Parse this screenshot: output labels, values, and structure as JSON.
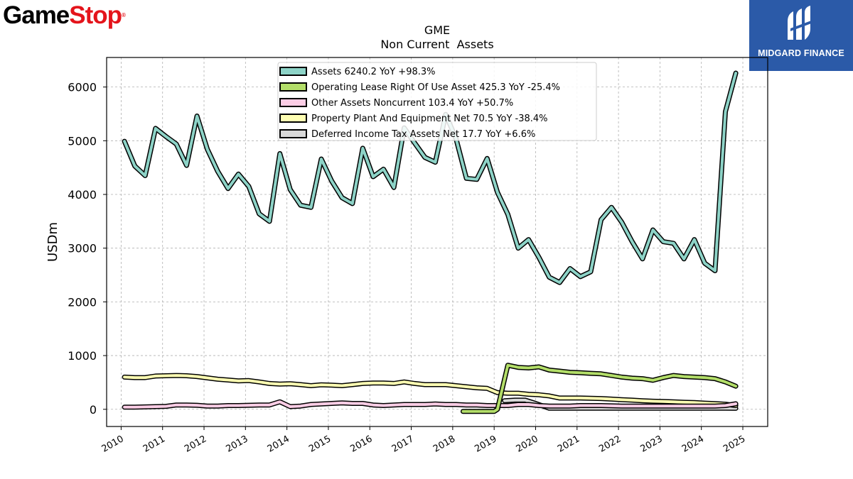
{
  "branding": {
    "left_logo": {
      "part1": "Game",
      "part2": "Stop",
      "mark": "®"
    },
    "right_logo": {
      "icon": "midgard-m-logo-icon",
      "text": "MIDGARD FINANCE",
      "background": "#2b5aa8"
    }
  },
  "chart_data": {
    "type": "line",
    "title": "GME",
    "subtitle": "Non Current  Assets",
    "xlabel": "",
    "ylabel": "USDm",
    "xlim": [
      2009.65,
      2025.6
    ],
    "ylim": [
      -320,
      6550
    ],
    "x_ticks": [
      2010,
      2011,
      2012,
      2013,
      2014,
      2015,
      2016,
      2017,
      2018,
      2019,
      2020,
      2021,
      2022,
      2023,
      2024,
      2025
    ],
    "y_ticks": [
      0,
      1000,
      2000,
      3000,
      4000,
      5000,
      6000
    ],
    "grid": true,
    "legend_position": "top-center",
    "series": [
      {
        "name": "Assets",
        "legend_label": "Assets  6240.2 YoY +98.3%",
        "color": "#8dd3c7",
        "points": [
          [
            2010.08,
            4990
          ],
          [
            2010.33,
            4530
          ],
          [
            2010.58,
            4350
          ],
          [
            2010.83,
            5230
          ],
          [
            2011.08,
            5080
          ],
          [
            2011.33,
            4940
          ],
          [
            2011.58,
            4540
          ],
          [
            2011.83,
            5460
          ],
          [
            2012.08,
            4840
          ],
          [
            2012.33,
            4430
          ],
          [
            2012.58,
            4110
          ],
          [
            2012.83,
            4380
          ],
          [
            2013.08,
            4150
          ],
          [
            2013.33,
            3640
          ],
          [
            2013.58,
            3500
          ],
          [
            2013.83,
            4760
          ],
          [
            2014.08,
            4090
          ],
          [
            2014.33,
            3800
          ],
          [
            2014.58,
            3760
          ],
          [
            2014.83,
            4660
          ],
          [
            2015.08,
            4250
          ],
          [
            2015.33,
            3940
          ],
          [
            2015.58,
            3830
          ],
          [
            2015.83,
            4860
          ],
          [
            2016.08,
            4330
          ],
          [
            2016.33,
            4470
          ],
          [
            2016.58,
            4130
          ],
          [
            2016.83,
            5240
          ],
          [
            2017.08,
            4960
          ],
          [
            2017.33,
            4690
          ],
          [
            2017.58,
            4600
          ],
          [
            2017.83,
            5490
          ],
          [
            2018.08,
            5040
          ],
          [
            2018.33,
            4300
          ],
          [
            2018.58,
            4280
          ],
          [
            2018.83,
            4670
          ],
          [
            2019.08,
            4040
          ],
          [
            2019.33,
            3630
          ],
          [
            2019.58,
            3000
          ],
          [
            2019.83,
            3160
          ],
          [
            2020.08,
            2830
          ],
          [
            2020.33,
            2460
          ],
          [
            2020.58,
            2360
          ],
          [
            2020.83,
            2620
          ],
          [
            2021.08,
            2470
          ],
          [
            2021.33,
            2560
          ],
          [
            2021.58,
            3530
          ],
          [
            2021.83,
            3760
          ],
          [
            2022.08,
            3480
          ],
          [
            2022.33,
            3120
          ],
          [
            2022.58,
            2800
          ],
          [
            2022.83,
            3340
          ],
          [
            2023.08,
            3120
          ],
          [
            2023.33,
            3090
          ],
          [
            2023.58,
            2800
          ],
          [
            2023.83,
            3160
          ],
          [
            2024.08,
            2720
          ],
          [
            2024.33,
            2580
          ],
          [
            2024.58,
            5540
          ],
          [
            2024.83,
            6260
          ]
        ]
      },
      {
        "name": "Operating Lease Right Of Use Asset",
        "legend_label": "Operating Lease Right Of Use Asset  425.3 YoY -25.4%",
        "color": "#b3de69",
        "points": [
          [
            2018.25,
            -40
          ],
          [
            2018.5,
            -40
          ],
          [
            2018.75,
            -40
          ],
          [
            2019.0,
            -40
          ],
          [
            2019.08,
            0
          ],
          [
            2019.33,
            820
          ],
          [
            2019.58,
            780
          ],
          [
            2019.83,
            770
          ],
          [
            2020.08,
            790
          ],
          [
            2020.33,
            730
          ],
          [
            2020.58,
            710
          ],
          [
            2020.83,
            690
          ],
          [
            2021.08,
            680
          ],
          [
            2021.33,
            670
          ],
          [
            2021.58,
            660
          ],
          [
            2021.83,
            630
          ],
          [
            2022.08,
            600
          ],
          [
            2022.33,
            580
          ],
          [
            2022.58,
            570
          ],
          [
            2022.83,
            540
          ],
          [
            2023.08,
            590
          ],
          [
            2023.33,
            630
          ],
          [
            2023.58,
            610
          ],
          [
            2023.83,
            600
          ],
          [
            2024.08,
            590
          ],
          [
            2024.33,
            570
          ],
          [
            2024.58,
            510
          ],
          [
            2024.83,
            430
          ]
        ]
      },
      {
        "name": "Other Assets Noncurrent",
        "legend_label": "Other Assets Noncurrent  103.4 YoY +50.7%",
        "color": "#fccde5",
        "points": [
          [
            2010.08,
            40
          ],
          [
            2010.33,
            40
          ],
          [
            2010.58,
            45
          ],
          [
            2010.83,
            50
          ],
          [
            2011.08,
            55
          ],
          [
            2011.33,
            80
          ],
          [
            2011.58,
            80
          ],
          [
            2011.83,
            75
          ],
          [
            2012.08,
            60
          ],
          [
            2012.33,
            60
          ],
          [
            2012.58,
            70
          ],
          [
            2012.83,
            70
          ],
          [
            2013.08,
            75
          ],
          [
            2013.33,
            80
          ],
          [
            2013.58,
            80
          ],
          [
            2013.83,
            140
          ],
          [
            2014.08,
            50
          ],
          [
            2014.33,
            60
          ],
          [
            2014.58,
            90
          ],
          [
            2014.83,
            100
          ],
          [
            2015.08,
            110
          ],
          [
            2015.33,
            120
          ],
          [
            2015.58,
            110
          ],
          [
            2015.83,
            110
          ],
          [
            2016.08,
            80
          ],
          [
            2016.33,
            70
          ],
          [
            2016.58,
            80
          ],
          [
            2016.83,
            90
          ],
          [
            2017.08,
            90
          ],
          [
            2017.33,
            90
          ],
          [
            2017.58,
            100
          ],
          [
            2017.83,
            90
          ],
          [
            2018.08,
            90
          ],
          [
            2018.33,
            80
          ],
          [
            2018.58,
            80
          ],
          [
            2018.83,
            70
          ],
          [
            2019.08,
            70
          ],
          [
            2019.33,
            70
          ],
          [
            2019.58,
            90
          ],
          [
            2019.83,
            90
          ],
          [
            2020.08,
            70
          ],
          [
            2020.33,
            60
          ],
          [
            2020.58,
            60
          ],
          [
            2020.83,
            60
          ],
          [
            2021.08,
            70
          ],
          [
            2021.33,
            70
          ],
          [
            2021.58,
            70
          ],
          [
            2021.83,
            65
          ],
          [
            2022.08,
            60
          ],
          [
            2022.33,
            60
          ],
          [
            2022.58,
            60
          ],
          [
            2022.83,
            60
          ],
          [
            2023.08,
            60
          ],
          [
            2023.33,
            60
          ],
          [
            2023.58,
            60
          ],
          [
            2023.83,
            60
          ],
          [
            2024.08,
            60
          ],
          [
            2024.33,
            60
          ],
          [
            2024.58,
            70
          ],
          [
            2024.83,
            103
          ]
        ]
      },
      {
        "name": "Property Plant And Equipment Net",
        "legend_label": "Property Plant And Equipment Net  70.5 YoY -38.4%",
        "color": "#ffffb3",
        "points": [
          [
            2010.08,
            600
          ],
          [
            2010.33,
            590
          ],
          [
            2010.58,
            590
          ],
          [
            2010.83,
            620
          ],
          [
            2011.08,
            625
          ],
          [
            2011.33,
            630
          ],
          [
            2011.58,
            625
          ],
          [
            2011.83,
            610
          ],
          [
            2012.08,
            585
          ],
          [
            2012.33,
            560
          ],
          [
            2012.58,
            545
          ],
          [
            2012.83,
            530
          ],
          [
            2013.08,
            535
          ],
          [
            2013.33,
            510
          ],
          [
            2013.58,
            480
          ],
          [
            2013.83,
            470
          ],
          [
            2014.08,
            475
          ],
          [
            2014.33,
            460
          ],
          [
            2014.58,
            440
          ],
          [
            2014.83,
            455
          ],
          [
            2015.08,
            450
          ],
          [
            2015.33,
            440
          ],
          [
            2015.58,
            460
          ],
          [
            2015.83,
            480
          ],
          [
            2016.08,
            490
          ],
          [
            2016.33,
            490
          ],
          [
            2016.58,
            480
          ],
          [
            2016.83,
            510
          ],
          [
            2017.08,
            480
          ],
          [
            2017.33,
            460
          ],
          [
            2017.58,
            460
          ],
          [
            2017.83,
            460
          ],
          [
            2018.08,
            440
          ],
          [
            2018.33,
            420
          ],
          [
            2018.58,
            400
          ],
          [
            2018.83,
            390
          ],
          [
            2019.08,
            310
          ],
          [
            2019.33,
            300
          ],
          [
            2019.58,
            300
          ],
          [
            2019.83,
            280
          ],
          [
            2020.08,
            270
          ],
          [
            2020.33,
            250
          ],
          [
            2020.58,
            210
          ],
          [
            2020.83,
            210
          ],
          [
            2021.08,
            210
          ],
          [
            2021.33,
            205
          ],
          [
            2021.58,
            200
          ],
          [
            2021.83,
            190
          ],
          [
            2022.08,
            180
          ],
          [
            2022.33,
            170
          ],
          [
            2022.58,
            160
          ],
          [
            2022.83,
            150
          ],
          [
            2023.08,
            145
          ],
          [
            2023.33,
            140
          ],
          [
            2023.58,
            130
          ],
          [
            2023.83,
            125
          ],
          [
            2024.08,
            115
          ],
          [
            2024.33,
            105
          ],
          [
            2024.58,
            95
          ],
          [
            2024.83,
            70
          ]
        ]
      },
      {
        "name": "Deferred Income Tax Assets Net",
        "legend_label": "Deferred Income Tax Assets Net  17.7 YoY +6.6%",
        "color": "#d9d9d9",
        "points": [
          [
            2019.25,
            160
          ],
          [
            2019.5,
            170
          ],
          [
            2019.75,
            170
          ],
          [
            2020.0,
            110
          ],
          [
            2020.33,
            20
          ],
          [
            2020.58,
            20
          ],
          [
            2020.83,
            20
          ],
          [
            2021.08,
            20
          ],
          [
            2021.33,
            20
          ],
          [
            2021.58,
            20
          ],
          [
            2021.83,
            20
          ],
          [
            2022.08,
            20
          ],
          [
            2022.33,
            20
          ],
          [
            2022.58,
            20
          ],
          [
            2022.83,
            20
          ],
          [
            2023.08,
            20
          ],
          [
            2023.33,
            20
          ],
          [
            2023.58,
            20
          ],
          [
            2023.83,
            20
          ],
          [
            2024.08,
            20
          ],
          [
            2024.33,
            20
          ],
          [
            2024.58,
            20
          ],
          [
            2024.83,
            18
          ]
        ]
      }
    ]
  }
}
